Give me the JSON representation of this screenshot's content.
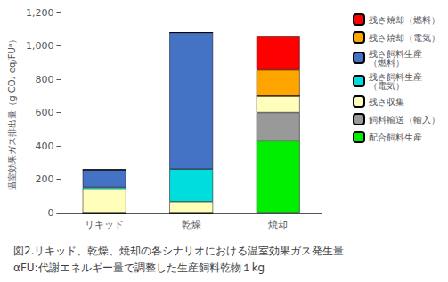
{
  "chart_data": {
    "type": "bar",
    "stacked": true,
    "title": "図2.リキッド、乾燥、焼却の各シナリオにおける温室効果ガス発生量",
    "subtitle": "αFU:代謝エネルギー量で調整した生産飼料乾物１kg",
    "ylabel": "温室効果ガス排出量（g CO₂ eq/FUᵃ）",
    "categories": [
      "リキッド",
      "乾燥",
      "焼却"
    ],
    "series": [
      {
        "name": "配合飼料生産",
        "color": "#00ee00",
        "values": [
          0,
          0,
          430
        ]
      },
      {
        "name": "飼料輸送（輸入）",
        "color": "#999999",
        "values": [
          0,
          0,
          170
        ]
      },
      {
        "name": "残さ収集",
        "color": "#ffffbb",
        "values": [
          140,
          65,
          100
        ]
      },
      {
        "name": "残さ飼料生産\n（電気）",
        "color": "#00dddd",
        "values": [
          12,
          195,
          0
        ]
      },
      {
        "name": "残さ飼料生産\n（燃料）",
        "color": "#4472c4",
        "values": [
          105,
          820,
          0
        ]
      },
      {
        "name": "残さ焼却（電気）",
        "color": "#ffa500",
        "values": [
          0,
          0,
          155
        ]
      },
      {
        "name": "残さ焼却（燃料）",
        "color": "#ff0000",
        "values": [
          0,
          0,
          200
        ]
      }
    ],
    "ylim": [
      0,
      1200
    ],
    "yticks": [
      0,
      200,
      400,
      600,
      800,
      1000,
      1200
    ],
    "grid": false,
    "legend": "upper right"
  }
}
